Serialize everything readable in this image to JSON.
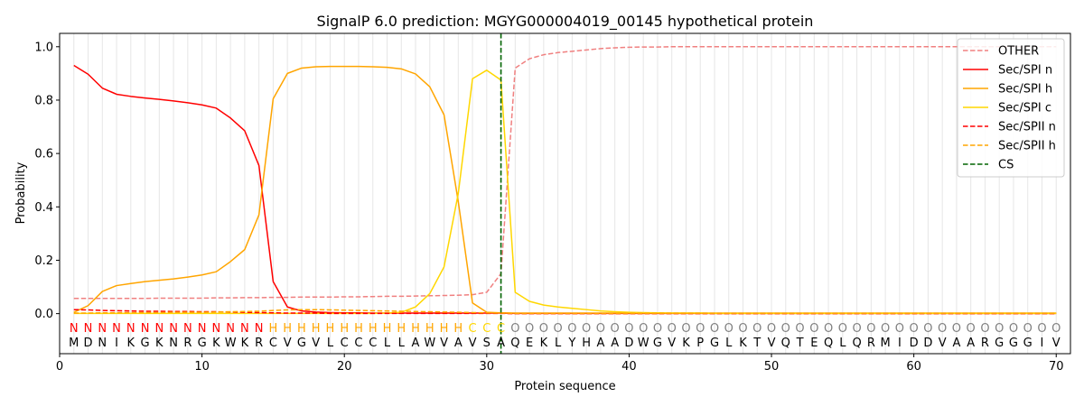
{
  "chart_data": {
    "type": "line",
    "title": "SignalP 6.0 prediction: MGYG000004019_00145 hypothetical protein",
    "xlabel": "Protein sequence",
    "ylabel": "Probability",
    "xlim": [
      0,
      71
    ],
    "ylim": [
      -0.15,
      1.05
    ],
    "xticks": [
      "0",
      "10",
      "20",
      "30",
      "40",
      "50",
      "60",
      "70"
    ],
    "yticks": [
      "0.0",
      "0.2",
      "0.4",
      "0.6",
      "0.8",
      "1.0"
    ],
    "grid": "vertical at every residue",
    "legend_position": "top-right",
    "sequence": [
      "M",
      "D",
      "N",
      "I",
      "K",
      "G",
      "K",
      "N",
      "R",
      "G",
      "K",
      "W",
      "K",
      "R",
      "C",
      "V",
      "G",
      "V",
      "L",
      "C",
      "C",
      "C",
      "L",
      "L",
      "A",
      "W",
      "V",
      "A",
      "V",
      "S",
      "A",
      "Q",
      "E",
      "K",
      "L",
      "Y",
      "H",
      "A",
      "A",
      "D",
      "W",
      "G",
      "V",
      "K",
      "P",
      "G",
      "L",
      "K",
      "T",
      "V",
      "Q",
      "T",
      "E",
      "Q",
      "L",
      "Q",
      "R",
      "M",
      "I",
      "D",
      "D",
      "V",
      "A",
      "A",
      "R",
      "G",
      "G",
      "G",
      "I",
      "V"
    ],
    "states": [
      "N",
      "N",
      "N",
      "N",
      "N",
      "N",
      "N",
      "N",
      "N",
      "N",
      "N",
      "N",
      "N",
      "N",
      "H",
      "H",
      "H",
      "H",
      "H",
      "H",
      "H",
      "H",
      "H",
      "H",
      "H",
      "H",
      "H",
      "H",
      "C",
      "C",
      "C",
      "O",
      "O",
      "O",
      "O",
      "O",
      "O",
      "O",
      "O",
      "O",
      "O",
      "O",
      "O",
      "O",
      "O",
      "O",
      "O",
      "O",
      "O",
      "O",
      "O",
      "O",
      "O",
      "O",
      "O",
      "O",
      "O",
      "O",
      "O",
      "O",
      "O",
      "O",
      "O",
      "O",
      "O",
      "O",
      "O",
      "O",
      "O",
      "O"
    ],
    "state_colors": {
      "N": "#ff0000",
      "H": "#ffa500",
      "C": "#ffd700",
      "O": "#808080"
    },
    "series": [
      {
        "name": "OTHER",
        "color": "#f08080",
        "dash": "dashed",
        "values": [
          0.057,
          0.057,
          0.057,
          0.057,
          0.057,
          0.057,
          0.058,
          0.058,
          0.058,
          0.058,
          0.059,
          0.059,
          0.06,
          0.06,
          0.061,
          0.061,
          0.062,
          0.062,
          0.062,
          0.063,
          0.063,
          0.064,
          0.065,
          0.065,
          0.066,
          0.067,
          0.068,
          0.069,
          0.071,
          0.08,
          0.15,
          0.92,
          0.955,
          0.97,
          0.978,
          0.983,
          0.988,
          0.993,
          0.996,
          0.998,
          0.999,
          0.999,
          1.0,
          1.0,
          1.0,
          1.0,
          1.0,
          1.0,
          1.0,
          1.0,
          1.0,
          1.0,
          1.0,
          1.0,
          1.0,
          1.0,
          1.0,
          1.0,
          1.0,
          1.0,
          1.0,
          1.0,
          1.0,
          1.0,
          1.0,
          1.0,
          1.0,
          1.0,
          1.0,
          1.0
        ]
      },
      {
        "name": "Sec/SPI n",
        "color": "#ff0000",
        "dash": "solid",
        "values": [
          0.93,
          0.897,
          0.845,
          0.822,
          0.814,
          0.808,
          0.803,
          0.797,
          0.79,
          0.782,
          0.77,
          0.733,
          0.685,
          0.555,
          0.12,
          0.025,
          0.01,
          0.006,
          0.004,
          0.003,
          0.003,
          0.002,
          0.002,
          0.002,
          0.002,
          0.002,
          0.002,
          0.002,
          0.002,
          0.002,
          0.002,
          0.001,
          0.001,
          0.001,
          0.001,
          0.001,
          0.001,
          0.001,
          0.001,
          0.001,
          0.001,
          0.001,
          0.001,
          0.001,
          0.001,
          0.001,
          0.001,
          0.001,
          0.001,
          0.001,
          0.001,
          0.001,
          0.001,
          0.001,
          0.001,
          0.001,
          0.001,
          0.001,
          0.001,
          0.001,
          0.001,
          0.001,
          0.001,
          0.001,
          0.001,
          0.001,
          0.001,
          0.001,
          0.001,
          0.001
        ]
      },
      {
        "name": "Sec/SPI h",
        "color": "#ffa500",
        "dash": "solid",
        "values": [
          0.005,
          0.03,
          0.083,
          0.105,
          0.113,
          0.12,
          0.125,
          0.13,
          0.137,
          0.145,
          0.157,
          0.195,
          0.24,
          0.37,
          0.805,
          0.9,
          0.92,
          0.925,
          0.926,
          0.926,
          0.926,
          0.925,
          0.923,
          0.917,
          0.898,
          0.85,
          0.745,
          0.42,
          0.04,
          0.005,
          0.003,
          0.002,
          0.002,
          0.002,
          0.002,
          0.002,
          0.002,
          0.002,
          0.002,
          0.002,
          0.002,
          0.002,
          0.002,
          0.002,
          0.002,
          0.002,
          0.002,
          0.002,
          0.002,
          0.002,
          0.002,
          0.002,
          0.002,
          0.002,
          0.002,
          0.002,
          0.002,
          0.002,
          0.002,
          0.002,
          0.002,
          0.002,
          0.002,
          0.002,
          0.002,
          0.002,
          0.002,
          0.002,
          0.002,
          0.002
        ]
      },
      {
        "name": "Sec/SPI c",
        "color": "#ffd700",
        "dash": "solid",
        "values": [
          0.001,
          0.001,
          0.001,
          0.001,
          0.001,
          0.001,
          0.001,
          0.001,
          0.001,
          0.001,
          0.001,
          0.001,
          0.001,
          0.001,
          0.001,
          0.001,
          0.001,
          0.001,
          0.001,
          0.001,
          0.001,
          0.001,
          0.002,
          0.005,
          0.025,
          0.075,
          0.175,
          0.45,
          0.88,
          0.912,
          0.875,
          0.08,
          0.046,
          0.032,
          0.025,
          0.02,
          0.015,
          0.01,
          0.007,
          0.005,
          0.004,
          0.003,
          0.002,
          0.002,
          0.002,
          0.001,
          0.001,
          0.001,
          0.001,
          0.001,
          0.001,
          0.001,
          0.001,
          0.001,
          0.001,
          0.001,
          0.001,
          0.001,
          0.001,
          0.001,
          0.001,
          0.001,
          0.001,
          0.001,
          0.001,
          0.001,
          0.001,
          0.001,
          0.001,
          0.001
        ]
      },
      {
        "name": "Sec/SPII n",
        "color": "#ff0000",
        "dash": "dashed",
        "values": [
          0.015,
          0.014,
          0.012,
          0.011,
          0.01,
          0.009,
          0.009,
          0.008,
          0.008,
          0.007,
          0.007,
          0.006,
          0.005,
          0.004,
          0.003,
          0.002,
          0.002,
          0.002,
          0.001,
          0.001,
          0.001,
          0.001,
          0.001,
          0.001,
          0.001,
          0.001,
          0.001,
          0.001,
          0.001,
          0.001,
          0.001,
          0.0,
          0.0,
          0.0,
          0.0,
          0.0,
          0.0,
          0.0,
          0.0,
          0.0,
          0.0,
          0.0,
          0.0,
          0.0,
          0.0,
          0.0,
          0.0,
          0.0,
          0.0,
          0.0,
          0.0,
          0.0,
          0.0,
          0.0,
          0.0,
          0.0,
          0.0,
          0.0,
          0.0,
          0.0,
          0.0,
          0.0,
          0.0,
          0.0,
          0.0,
          0.0,
          0.0,
          0.0,
          0.0,
          0.0
        ]
      },
      {
        "name": "Sec/SPII h",
        "color": "#ffa500",
        "dash": "dashed",
        "values": [
          0.002,
          0.002,
          0.003,
          0.003,
          0.004,
          0.004,
          0.004,
          0.005,
          0.005,
          0.005,
          0.006,
          0.007,
          0.008,
          0.009,
          0.012,
          0.014,
          0.015,
          0.015,
          0.014,
          0.013,
          0.012,
          0.011,
          0.01,
          0.009,
          0.008,
          0.007,
          0.006,
          0.005,
          0.004,
          0.003,
          0.002,
          0.001,
          0.001,
          0.001,
          0.001,
          0.001,
          0.001,
          0.001,
          0.001,
          0.001,
          0.001,
          0.001,
          0.001,
          0.001,
          0.001,
          0.001,
          0.001,
          0.001,
          0.001,
          0.001,
          0.001,
          0.001,
          0.001,
          0.001,
          0.001,
          0.001,
          0.001,
          0.001,
          0.001,
          0.001,
          0.001,
          0.001,
          0.001,
          0.001,
          0.001,
          0.001,
          0.001,
          0.001,
          0.001,
          0.001
        ]
      }
    ],
    "cleavage_site": {
      "name": "CS",
      "x": 31,
      "color": "#006400",
      "dash": "dashed"
    }
  }
}
